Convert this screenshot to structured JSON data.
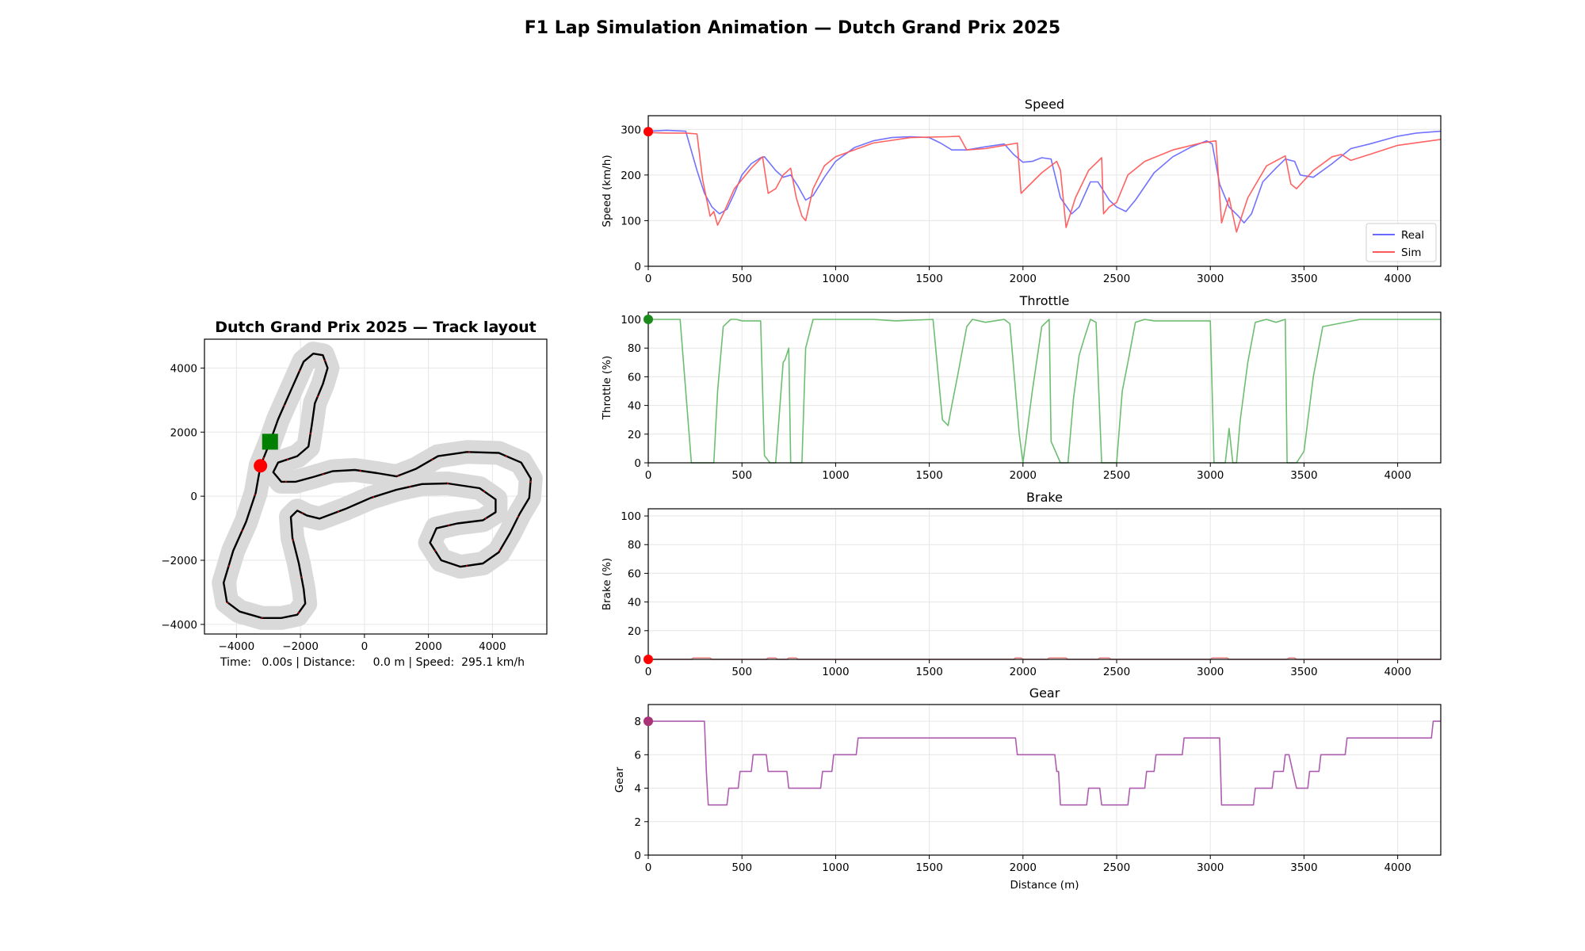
{
  "figure": {
    "title": "F1 Lap Simulation Animation — Dutch Grand Prix 2025",
    "status_text": "Time:   0.00s | Distance:     0.0 m | Speed:  295.1 km/h"
  },
  "colors": {
    "real": "#6a6aff",
    "sim": "#ff5a5a",
    "throttle": "#66bb6a",
    "brake": "#ee8888",
    "gear": "#aa55aa",
    "track_outline": "#d9d9d9",
    "track_line": "#000000",
    "start_marker": "#008000",
    "car_marker": "#ff0000"
  },
  "chart_data": [
    {
      "id": "track",
      "type": "line",
      "title": "Dutch Grand Prix 2025 — Track layout",
      "xlim": [
        -5000,
        5700
      ],
      "ylim": [
        -4300,
        4900
      ],
      "xticks": [
        -4000,
        -2000,
        0,
        2000,
        4000
      ],
      "yticks": [
        -4000,
        -2000,
        0,
        2000,
        4000
      ],
      "xtick_labels": [
        "−4000",
        "−2000",
        "0",
        "2000",
        "4000"
      ],
      "ytick_labels": [
        "−4000",
        "−2000",
        "0",
        "2000",
        "4000"
      ],
      "grid": true,
      "start_marker": {
        "x": -2950,
        "y": 1700,
        "shape": "square"
      },
      "car_marker": {
        "x": -3250,
        "y": 950,
        "shape": "circle"
      },
      "path": [
        [
          -2950,
          1700
        ],
        [
          -2700,
          2400
        ],
        [
          -2300,
          3300
        ],
        [
          -1900,
          4200
        ],
        [
          -1600,
          4450
        ],
        [
          -1300,
          4400
        ],
        [
          -1150,
          4000
        ],
        [
          -1300,
          3500
        ],
        [
          -1550,
          2900
        ],
        [
          -1650,
          2200
        ],
        [
          -1750,
          1550
        ],
        [
          -2100,
          1250
        ],
        [
          -2700,
          1050
        ],
        [
          -2850,
          750
        ],
        [
          -2600,
          450
        ],
        [
          -2150,
          450
        ],
        [
          -1600,
          600
        ],
        [
          -1000,
          780
        ],
        [
          -300,
          820
        ],
        [
          400,
          720
        ],
        [
          1000,
          620
        ],
        [
          1600,
          850
        ],
        [
          2300,
          1250
        ],
        [
          3200,
          1380
        ],
        [
          4200,
          1350
        ],
        [
          4900,
          1050
        ],
        [
          5200,
          550
        ],
        [
          5150,
          -50
        ],
        [
          4850,
          -550
        ],
        [
          4550,
          -1150
        ],
        [
          4200,
          -1750
        ],
        [
          3700,
          -2100
        ],
        [
          3000,
          -2200
        ],
        [
          2400,
          -2000
        ],
        [
          2050,
          -1450
        ],
        [
          2250,
          -1000
        ],
        [
          2900,
          -850
        ],
        [
          3700,
          -750
        ],
        [
          4100,
          -500
        ],
        [
          4100,
          -100
        ],
        [
          3600,
          250
        ],
        [
          2600,
          400
        ],
        [
          1800,
          380
        ],
        [
          1000,
          200
        ],
        [
          200,
          -50
        ],
        [
          -600,
          -400
        ],
        [
          -1400,
          -700
        ],
        [
          -1800,
          -600
        ],
        [
          -2100,
          -450
        ],
        [
          -2300,
          -650
        ],
        [
          -2250,
          -1300
        ],
        [
          -2050,
          -2100
        ],
        [
          -1900,
          -2900
        ],
        [
          -1850,
          -3350
        ],
        [
          -2100,
          -3700
        ],
        [
          -2600,
          -3800
        ],
        [
          -3200,
          -3800
        ],
        [
          -3900,
          -3600
        ],
        [
          -4300,
          -3300
        ],
        [
          -4400,
          -2700
        ],
        [
          -4100,
          -1700
        ],
        [
          -3700,
          -800
        ],
        [
          -3400,
          100
        ],
        [
          -3250,
          950
        ],
        [
          -2950,
          1700
        ]
      ]
    },
    {
      "id": "speed",
      "type": "line",
      "title": "Speed",
      "ylabel": "Speed (km/h)",
      "xlim": [
        0,
        4230
      ],
      "ylim": [
        0,
        330
      ],
      "xticks": [
        0,
        500,
        1000,
        1500,
        2000,
        2500,
        3000,
        3500,
        4000
      ],
      "yticks": [
        0,
        100,
        200,
        300
      ],
      "grid": true,
      "legend": "lower-right",
      "cursor": {
        "x": 0,
        "y": 295
      },
      "series": [
        {
          "name": "Real",
          "x": [
            0,
            100,
            200,
            260,
            300,
            340,
            380,
            420,
            460,
            500,
            550,
            600,
            620,
            680,
            720,
            760,
            800,
            840,
            880,
            940,
            1000,
            1100,
            1200,
            1300,
            1400,
            1500,
            1560,
            1620,
            1700,
            1800,
            1900,
            1950,
            2000,
            2050,
            2100,
            2150,
            2200,
            2260,
            2300,
            2360,
            2400,
            2460,
            2500,
            2550,
            2600,
            2700,
            2800,
            2900,
            2980,
            3010,
            3050,
            3100,
            3150,
            3180,
            3220,
            3280,
            3350,
            3400,
            3450,
            3480,
            3550,
            3650,
            3750,
            3850,
            4000,
            4100,
            4230
          ],
          "values": [
            296,
            298,
            296,
            210,
            160,
            130,
            115,
            125,
            160,
            200,
            225,
            238,
            240,
            210,
            195,
            200,
            175,
            145,
            155,
            195,
            230,
            260,
            275,
            282,
            284,
            282,
            270,
            255,
            255,
            262,
            268,
            245,
            228,
            230,
            238,
            235,
            150,
            115,
            130,
            185,
            185,
            145,
            130,
            120,
            145,
            205,
            240,
            262,
            275,
            268,
            180,
            130,
            110,
            95,
            115,
            185,
            215,
            235,
            230,
            200,
            195,
            225,
            258,
            268,
            285,
            292,
            296
          ]
        },
        {
          "name": "Sim",
          "x": [
            0,
            100,
            200,
            260,
            290,
            330,
            350,
            370,
            400,
            460,
            550,
            610,
            640,
            680,
            720,
            760,
            790,
            820,
            840,
            880,
            940,
            1000,
            1200,
            1400,
            1600,
            1660,
            1700,
            1800,
            1900,
            1970,
            1990,
            2100,
            2180,
            2200,
            2230,
            2280,
            2350,
            2420,
            2430,
            2460,
            2500,
            2560,
            2650,
            2800,
            2950,
            3030,
            3060,
            3100,
            3140,
            3160,
            3200,
            3300,
            3400,
            3430,
            3460,
            3550,
            3650,
            3700,
            3750,
            3850,
            4000,
            4230
          ],
          "values": [
            293,
            292,
            292,
            290,
            190,
            110,
            120,
            90,
            115,
            170,
            215,
            240,
            160,
            170,
            200,
            215,
            150,
            110,
            100,
            170,
            220,
            240,
            270,
            282,
            284,
            285,
            255,
            258,
            265,
            270,
            160,
            205,
            230,
            210,
            85,
            150,
            210,
            238,
            115,
            130,
            140,
            200,
            230,
            255,
            270,
            275,
            95,
            150,
            75,
            100,
            150,
            220,
            242,
            180,
            170,
            210,
            240,
            245,
            232,
            245,
            265,
            278
          ]
        }
      ]
    },
    {
      "id": "throttle",
      "type": "line",
      "title": "Throttle",
      "ylabel": "Throttle (%)",
      "xlim": [
        0,
        4230
      ],
      "ylim": [
        0,
        105
      ],
      "xticks": [
        0,
        500,
        1000,
        1500,
        2000,
        2500,
        3000,
        3500,
        4000
      ],
      "yticks": [
        0,
        20,
        40,
        60,
        80,
        100
      ],
      "grid": true,
      "cursor": {
        "x": 0,
        "y": 100
      },
      "series": [
        {
          "name": "Throttle",
          "x": [
            0,
            170,
            230,
            240,
            350,
            370,
            400,
            440,
            470,
            500,
            600,
            620,
            650,
            680,
            720,
            730,
            750,
            760,
            770,
            780,
            820,
            840,
            880,
            920,
            950,
            1100,
            1200,
            1320,
            1520,
            1570,
            1600,
            1620,
            1650,
            1700,
            1730,
            1800,
            1900,
            1930,
            1980,
            2000,
            2050,
            2100,
            2140,
            2150,
            2200,
            2240,
            2270,
            2300,
            2330,
            2360,
            2390,
            2420,
            2440,
            2480,
            2500,
            2530,
            2560,
            2600,
            2650,
            2700,
            3000,
            3020,
            3080,
            3100,
            3120,
            3140,
            3160,
            3200,
            3240,
            3300,
            3350,
            3400,
            3410,
            3440,
            3460,
            3500,
            3550,
            3600,
            3800,
            4230
          ],
          "values": [
            100,
            100,
            0,
            0,
            0,
            50,
            95,
            100,
            100,
            99,
            99,
            5,
            0,
            0,
            70,
            72,
            80,
            0,
            0,
            0,
            0,
            80,
            100,
            100,
            100,
            100,
            100,
            99,
            100,
            30,
            26,
            40,
            60,
            95,
            100,
            98,
            100,
            97,
            20,
            0,
            50,
            95,
            100,
            15,
            0,
            0,
            45,
            75,
            88,
            100,
            98,
            0,
            0,
            0,
            0,
            50,
            70,
            98,
            100,
            99,
            99,
            0,
            0,
            24,
            0,
            0,
            30,
            70,
            98,
            100,
            98,
            100,
            0,
            0,
            0,
            8,
            60,
            95,
            100,
            100
          ]
        }
      ]
    },
    {
      "id": "brake",
      "type": "line",
      "title": "Brake",
      "ylabel": "Brake (%)",
      "xlim": [
        0,
        4230
      ],
      "ylim": [
        0,
        105
      ],
      "xticks": [
        0,
        500,
        1000,
        1500,
        2000,
        2500,
        3000,
        3500,
        4000
      ],
      "yticks": [
        0,
        20,
        40,
        60,
        80,
        100
      ],
      "grid": true,
      "cursor": {
        "x": 0,
        "y": 0
      },
      "series": [
        {
          "name": "Brake",
          "x": [
            0,
            230,
            240,
            330,
            340,
            630,
            640,
            680,
            690,
            740,
            750,
            790,
            800,
            1950,
            1960,
            1990,
            2000,
            2130,
            2140,
            2230,
            2240,
            2400,
            2410,
            2460,
            2470,
            3000,
            3010,
            3090,
            3100,
            3410,
            3420,
            3450,
            3460,
            4230
          ],
          "values": [
            0,
            0,
            1,
            1,
            0,
            0,
            1,
            1,
            0,
            0,
            1,
            1,
            0,
            0,
            1,
            1,
            0,
            0,
            1,
            1,
            0,
            0,
            1,
            1,
            0,
            0,
            1,
            1,
            0,
            0,
            1,
            1,
            0,
            0
          ]
        }
      ]
    },
    {
      "id": "gear",
      "type": "line",
      "title": "Gear",
      "ylabel": "Gear",
      "xlabel": "Distance (m)",
      "xlim": [
        0,
        4230
      ],
      "ylim": [
        0,
        9
      ],
      "xticks": [
        0,
        500,
        1000,
        1500,
        2000,
        2500,
        3000,
        3500,
        4000
      ],
      "yticks": [
        0,
        2,
        4,
        6,
        8
      ],
      "grid": true,
      "cursor": {
        "x": 0,
        "y": 8
      },
      "series": [
        {
          "name": "Gear",
          "x": [
            0,
            300,
            310,
            320,
            420,
            430,
            460,
            480,
            490,
            550,
            560,
            630,
            640,
            740,
            750,
            920,
            930,
            980,
            990,
            1110,
            1120,
            1960,
            1970,
            2170,
            2180,
            2190,
            2200,
            2340,
            2350,
            2410,
            2420,
            2560,
            2570,
            2600,
            2610,
            2650,
            2660,
            2700,
            2710,
            2850,
            2860,
            3050,
            3060,
            3230,
            3240,
            3260,
            3270,
            3330,
            3340,
            3390,
            3400,
            3420,
            3440,
            3460,
            3470,
            3520,
            3530,
            3580,
            3590,
            3720,
            3730,
            4180,
            4190,
            4230
          ],
          "values": [
            8,
            8,
            5,
            3,
            3,
            4,
            4,
            4,
            5,
            5,
            6,
            6,
            5,
            5,
            4,
            4,
            5,
            5,
            6,
            6,
            7,
            7,
            6,
            6,
            5,
            5,
            3,
            3,
            4,
            4,
            3,
            3,
            4,
            4,
            4,
            4,
            5,
            5,
            6,
            6,
            7,
            7,
            3,
            3,
            4,
            4,
            4,
            4,
            5,
            5,
            6,
            6,
            5,
            4,
            4,
            4,
            5,
            5,
            6,
            6,
            7,
            7,
            8,
            8
          ]
        }
      ]
    }
  ]
}
